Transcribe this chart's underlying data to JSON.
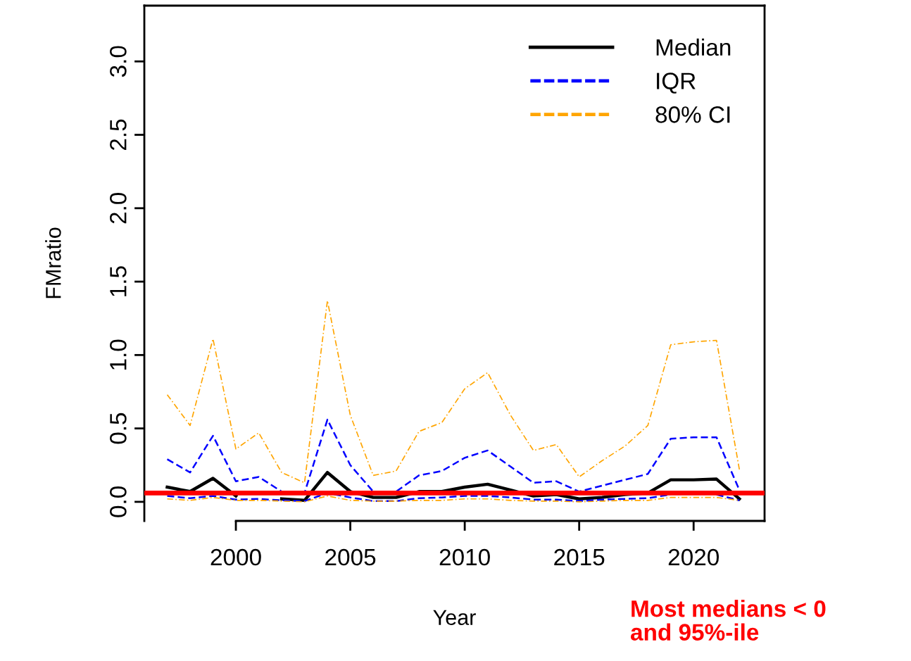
{
  "chart_data": {
    "type": "line",
    "xlabel": "Year",
    "ylabel": "FMratio",
    "x": [
      1997,
      1998,
      1999,
      2000,
      2001,
      2002,
      2003,
      2004,
      2005,
      2006,
      2007,
      2008,
      2009,
      2010,
      2011,
      2012,
      2013,
      2014,
      2015,
      2016,
      2017,
      2018,
      2019,
      2020,
      2021,
      2022
    ],
    "xlim": [
      1996,
      2023.1
    ],
    "xticks": [
      2000,
      2005,
      2010,
      2015,
      2020
    ],
    "ylim": [
      -0.13,
      3.38
    ],
    "yticks": [
      {
        "value": 0,
        "label": "0.0"
      },
      {
        "value": 0.5,
        "label": "0.5"
      },
      {
        "value": 1,
        "label": "1.0"
      },
      {
        "value": 1.5,
        "label": "1.5"
      },
      {
        "value": 2,
        "label": "2.0"
      },
      {
        "value": 2.5,
        "label": "2.5"
      },
      {
        "value": 3,
        "label": "3.0"
      }
    ],
    "grid": false,
    "legend": "top right",
    "marker": "none",
    "series": [
      {
        "name": "Median",
        "color": "#000000",
        "line_style": "solid",
        "values": [
          0.1,
          0.07,
          0.16,
          0.04,
          null,
          0.02,
          0.01,
          0.2,
          0.07,
          0.03,
          0.03,
          0.07,
          0.07,
          0.1,
          0.12,
          0.08,
          0.04,
          0.05,
          0.02,
          0.03,
          0.05,
          0.06,
          0.15,
          0.15,
          0.155,
          0.02
        ]
      },
      {
        "name": "IQR",
        "color": "#0000ff",
        "line_style": "dashed",
        "values": [
          0.29,
          0.2,
          0.45,
          0.14,
          0.17,
          0.07,
          0.06,
          0.56,
          0.25,
          0.07,
          0.07,
          0.18,
          0.21,
          0.3,
          0.35,
          0.24,
          0.13,
          0.14,
          0.07,
          0.11,
          0.15,
          0.19,
          0.43,
          0.44,
          0.44,
          0.08
        ]
      },
      {
        "color": "#0000ff",
        "line_style": "dashed",
        "values": [
          0.04,
          0.025,
          0.04,
          0.015,
          0.02,
          0.01,
          0.005,
          0.06,
          0.03,
          0.005,
          0.005,
          0.025,
          0.03,
          0.04,
          0.04,
          0.03,
          0.015,
          0.015,
          0.005,
          0.015,
          0.02,
          0.025,
          0.05,
          null,
          0.05,
          0.01
        ]
      },
      {
        "name": "80% CI",
        "color": "#ffa500",
        "line_style": "dashdot",
        "values": [
          0.73,
          0.52,
          1.11,
          0.36,
          0.47,
          0.2,
          0.13,
          1.37,
          0.59,
          0.18,
          0.21,
          0.48,
          0.54,
          0.77,
          0.88,
          0.59,
          0.35,
          0.39,
          0.17,
          0.28,
          0.38,
          0.52,
          1.07,
          1.09,
          1.1,
          0.22
        ]
      },
      {
        "color": "#ffa500",
        "line_style": "dashdot",
        "values": [
          0.02,
          0.01,
          0.03,
          0.01,
          0.01,
          0.005,
          0.0,
          0.04,
          0.01,
          0.005,
          0.005,
          0.01,
          0.01,
          0.02,
          0.02,
          0.01,
          0.005,
          0.005,
          0.0,
          0.005,
          0.01,
          0.01,
          0.03,
          0.03,
          0.03,
          0.01
        ]
      }
    ],
    "ref_lines": [
      {
        "axis": "y",
        "value": 0.06,
        "color": "#ff0000",
        "line_style": "solid"
      }
    ],
    "annotations": [
      "Most medians < 0\nand 95%-ile"
    ]
  }
}
